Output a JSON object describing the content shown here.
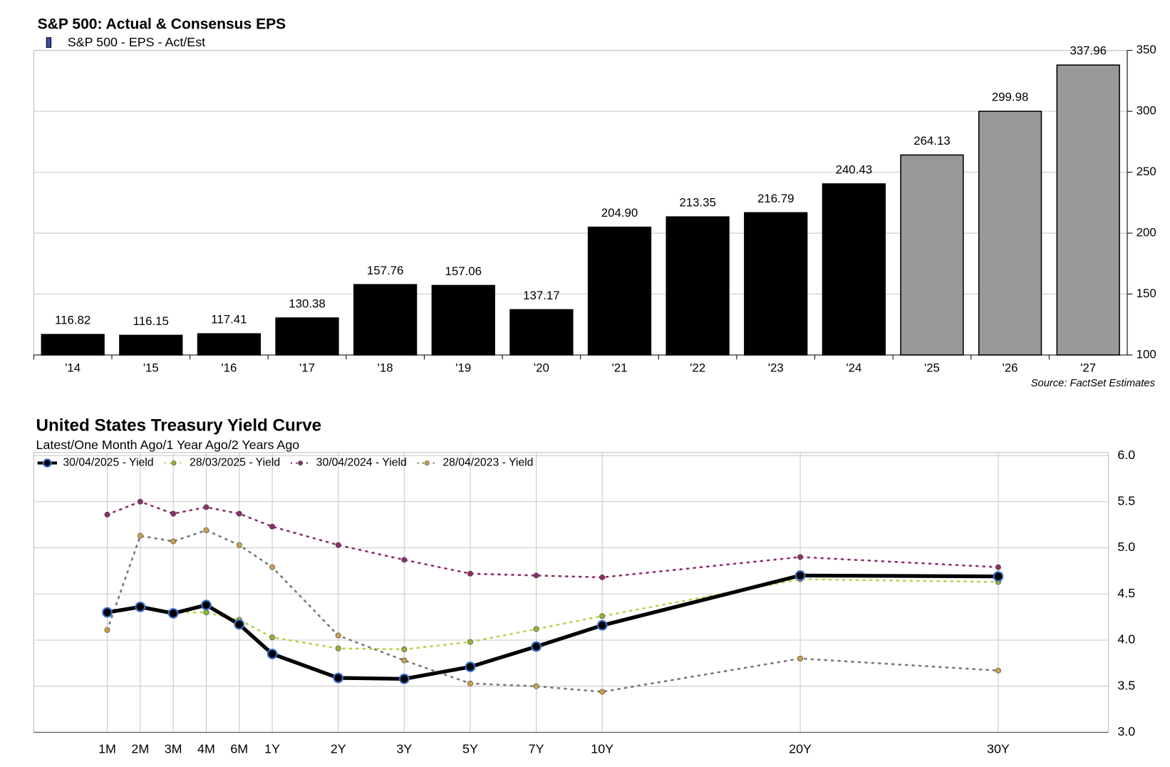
{
  "chart_data": [
    {
      "type": "bar",
      "title": "S&P 500: Actual & Consensus EPS",
      "source": "Source: FactSet Estimates",
      "categories": [
        "'14",
        "'15",
        "'16",
        "'17",
        "'18",
        "'19",
        "'20",
        "'21",
        "'22",
        "'23",
        "'24",
        "'25",
        "'26",
        "'27"
      ],
      "series": [
        {
          "name": "S&P 500 - EPS - Act/Est",
          "color": "#3a4fa8",
          "values": [
            116.82,
            116.15,
            117.41,
            130.38,
            157.76,
            157.06,
            137.17,
            204.9,
            213.35,
            216.79,
            240.43,
            264.13,
            299.98,
            337.96
          ],
          "value_labels": [
            "116.82",
            "116.15",
            "117.41",
            "130.38",
            "157.76",
            "157.06",
            "137.17",
            "204.90",
            "213.35",
            "216.79",
            "240.43",
            "264.13",
            "299.98",
            "337.96"
          ],
          "bar_colors": [
            "#000000",
            "#000000",
            "#000000",
            "#000000",
            "#000000",
            "#000000",
            "#000000",
            "#000000",
            "#000000",
            "#000000",
            "#000000",
            "#999999",
            "#999999",
            "#999999"
          ]
        }
      ],
      "ylim": [
        100,
        350
      ],
      "yticks": [
        100,
        150,
        200,
        250,
        300,
        350
      ],
      "grid": true
    },
    {
      "type": "line",
      "title": "United States Treasury Yield Curve",
      "subtitle": "Latest/One Month Ago/1 Year Ago/2 Years Ago",
      "categories": [
        "1M",
        "2M",
        "3M",
        "4M",
        "6M",
        "1Y",
        "2Y",
        "3Y",
        "5Y",
        "7Y",
        "10Y",
        "20Y",
        "30Y"
      ],
      "series": [
        {
          "name": "30/04/2025 - Yield",
          "color": "#000000",
          "marker_color": "#3b6fd0",
          "line_style": "solid",
          "values": [
            4.3,
            4.36,
            4.29,
            4.38,
            4.17,
            3.85,
            3.59,
            3.58,
            3.71,
            3.93,
            4.16,
            4.7,
            4.69
          ]
        },
        {
          "name": "28/03/2025 - Yield",
          "color": "#b5d34a",
          "marker_color": "#8fb33a",
          "line_style": "dotted",
          "values": [
            4.29,
            4.36,
            4.3,
            4.3,
            4.22,
            4.03,
            3.91,
            3.9,
            3.98,
            4.12,
            4.26,
            4.66,
            4.63
          ]
        },
        {
          "name": "30/04/2024 - Yield",
          "color": "#8b2e6b",
          "marker_color": "#8b2e6b",
          "line_style": "dotted",
          "values": [
            5.36,
            5.5,
            5.37,
            5.44,
            5.37,
            5.23,
            5.03,
            4.87,
            4.72,
            4.7,
            4.68,
            4.9,
            4.79
          ]
        },
        {
          "name": "28/04/2023 - Yield",
          "color": "#777777",
          "marker_color": "#c8a050",
          "line_style": "dotted",
          "values": [
            4.11,
            5.13,
            5.07,
            5.19,
            5.03,
            4.79,
            4.05,
            3.78,
            3.53,
            3.5,
            3.44,
            3.8,
            3.67
          ]
        }
      ],
      "ylim": [
        3,
        6
      ],
      "yticks": [
        {
          "value": 3,
          "label": "3.0"
        },
        3.5,
        {
          "value": 4,
          "label": "4.0"
        },
        4.5,
        {
          "value": 5,
          "label": "5.0"
        },
        5.5,
        {
          "value": 6,
          "label": "6.0"
        }
      ],
      "grid": true
    }
  ]
}
